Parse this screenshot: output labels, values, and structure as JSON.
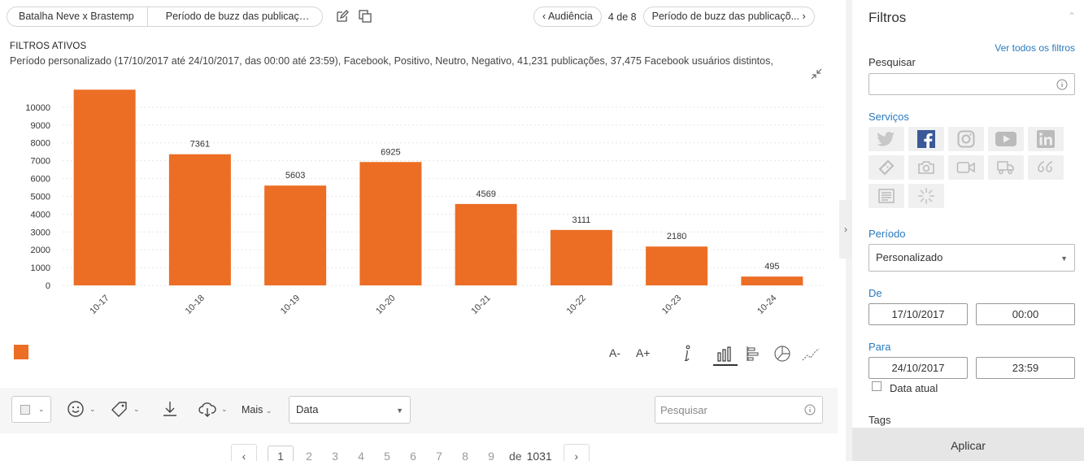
{
  "breadcrumb": {
    "item1": "Batalha Neve x Brastemp",
    "item2": "Período de buzz das publicaçõ..."
  },
  "nav": {
    "prev_label": "Audiência",
    "counter": "4 de 8",
    "next_label": "Período de buzz das publicaçõ..."
  },
  "filters": {
    "heading": "FILTROS ATIVOS",
    "description": "Período personalizado (17/10/2017 até 24/10/2017, das 00:00 até 23:59), Facebook, Positivo, Neutro, Negativo, 41,231 publicações, 37,475 Facebook usuários distintos,"
  },
  "chart_data": {
    "type": "bar",
    "categories": [
      "10-17",
      "10-18",
      "10-19",
      "10-20",
      "10-21",
      "10-22",
      "10-23",
      "10-24"
    ],
    "values": [
      10987,
      7361,
      5603,
      6925,
      4569,
      3111,
      2180,
      495
    ],
    "ylim": [
      0,
      11000
    ],
    "yticks": [
      0,
      1000,
      2000,
      3000,
      4000,
      5000,
      6000,
      7000,
      8000,
      9000,
      10000
    ],
    "grid": true,
    "color": "#ec6e24",
    "title": "",
    "xlabel": "",
    "ylabel": ""
  },
  "chart_tools": {
    "font_down": "A-",
    "font_up": "A+"
  },
  "toolbar": {
    "more_label": "Mais",
    "sort_value": "Data",
    "search_placeholder": "Pesquisar"
  },
  "pagination": {
    "pages": [
      "1",
      "2",
      "3",
      "4",
      "5",
      "6",
      "7",
      "8",
      "9"
    ],
    "of_label": "de",
    "total": "1031"
  },
  "panel": {
    "title": "Filtros",
    "see_all": "Ver todos os filtros",
    "search_label": "Pesquisar",
    "services_label": "Serviços",
    "period_label": "Período",
    "period_value": "Personalizado",
    "from_label": "De",
    "from_date": "17/10/2017",
    "from_time": "00:00",
    "to_label": "Para",
    "to_date": "24/10/2017",
    "to_time": "23:59",
    "current_date_label": "Data atual",
    "tags_label": "Tags",
    "apply_label": "Aplicar"
  },
  "colors": {
    "accent": "#ec6e24",
    "link": "#2a7abf",
    "facebook": "#3b5998"
  },
  "icons": {
    "services": [
      "twitter-icon",
      "facebook-icon",
      "instagram-icon",
      "youtube-icon",
      "linkedin-icon",
      "ticket-icon",
      "camera-icon",
      "video-icon",
      "truck-icon",
      "quote-icon",
      "news-icon",
      "loading-icon"
    ]
  }
}
